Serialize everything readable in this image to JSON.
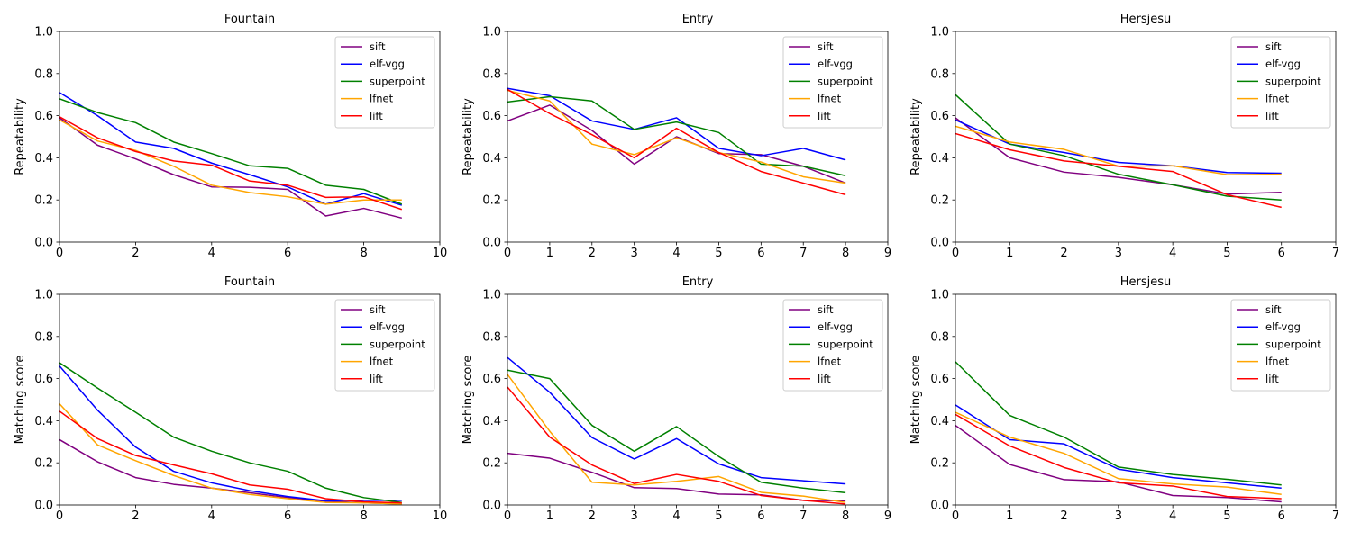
{
  "chart_data": [
    {
      "type": "line",
      "title": "Fountain",
      "ylabel": "Repeatability",
      "xlim": [
        0,
        10
      ],
      "ylim": [
        0,
        1
      ],
      "xticks": [
        0,
        2,
        4,
        6,
        8,
        10
      ],
      "yticks": [
        0.0,
        0.2,
        0.4,
        0.6,
        0.8,
        1.0
      ],
      "legend": "top-right",
      "x": [
        0,
        1,
        2,
        3,
        4,
        5,
        6,
        7,
        8,
        9
      ],
      "series": [
        {
          "name": "sift",
          "color": "#800080",
          "values": [
            0.59,
            0.46,
            0.395,
            0.32,
            0.262,
            0.26,
            0.25,
            0.124,
            0.16,
            0.114
          ]
        },
        {
          "name": "elf-vgg",
          "color": "#0000ff",
          "values": [
            0.71,
            0.6,
            0.475,
            0.445,
            0.375,
            0.32,
            0.262,
            0.18,
            0.23,
            0.175
          ]
        },
        {
          "name": "superpoint",
          "color": "#008000",
          "values": [
            0.68,
            0.615,
            0.567,
            0.475,
            0.42,
            0.362,
            0.35,
            0.27,
            0.25,
            0.18
          ]
        },
        {
          "name": "lfnet",
          "color": "#ffa500",
          "values": [
            0.58,
            0.48,
            0.435,
            0.36,
            0.27,
            0.235,
            0.215,
            0.18,
            0.2,
            0.2
          ]
        },
        {
          "name": "lift",
          "color": "#ff0000",
          "values": [
            0.595,
            0.495,
            0.43,
            0.385,
            0.365,
            0.29,
            0.27,
            0.212,
            0.215,
            0.155
          ]
        }
      ]
    },
    {
      "type": "line",
      "title": "Entry",
      "ylabel": "Repeatability",
      "xlim": [
        0,
        9
      ],
      "ylim": [
        0,
        1
      ],
      "xticks": [
        0,
        1,
        2,
        3,
        4,
        5,
        6,
        7,
        8,
        9
      ],
      "yticks": [
        0.0,
        0.2,
        0.4,
        0.6,
        0.8,
        1.0
      ],
      "legend": "top-right",
      "x": [
        0,
        1,
        2,
        3,
        4,
        5,
        6,
        7,
        8
      ],
      "series": [
        {
          "name": "sift",
          "color": "#800080",
          "values": [
            0.575,
            0.65,
            0.53,
            0.37,
            0.5,
            0.42,
            0.415,
            0.36,
            0.28
          ]
        },
        {
          "name": "elf-vgg",
          "color": "#0000ff",
          "values": [
            0.73,
            0.695,
            0.575,
            0.535,
            0.59,
            0.445,
            0.41,
            0.445,
            0.39
          ]
        },
        {
          "name": "superpoint",
          "color": "#008000",
          "values": [
            0.665,
            0.69,
            0.67,
            0.535,
            0.57,
            0.52,
            0.37,
            0.36,
            0.315
          ]
        },
        {
          "name": "lfnet",
          "color": "#ffa500",
          "values": [
            0.72,
            0.67,
            0.465,
            0.415,
            0.495,
            0.425,
            0.38,
            0.31,
            0.28
          ]
        },
        {
          "name": "lift",
          "color": "#ff0000",
          "values": [
            0.725,
            0.61,
            0.51,
            0.4,
            0.54,
            0.425,
            0.335,
            0.28,
            0.225
          ]
        }
      ]
    },
    {
      "type": "line",
      "title": "Hersjesu",
      "ylabel": "Repeatability",
      "xlim": [
        0,
        7
      ],
      "ylim": [
        0,
        1
      ],
      "xticks": [
        0,
        1,
        2,
        3,
        4,
        5,
        6,
        7
      ],
      "yticks": [
        0.0,
        0.2,
        0.4,
        0.6,
        0.8,
        1.0
      ],
      "legend": "top-right",
      "x": [
        0,
        1,
        2,
        3,
        4,
        5,
        6
      ],
      "series": [
        {
          "name": "sift",
          "color": "#800080",
          "values": [
            0.59,
            0.4,
            0.332,
            0.307,
            0.272,
            0.228,
            0.236
          ]
        },
        {
          "name": "elf-vgg",
          "color": "#0000ff",
          "values": [
            0.58,
            0.465,
            0.425,
            0.378,
            0.362,
            0.33,
            0.327
          ]
        },
        {
          "name": "superpoint",
          "color": "#008000",
          "values": [
            0.7,
            0.465,
            0.41,
            0.322,
            0.272,
            0.218,
            0.2
          ]
        },
        {
          "name": "lfnet",
          "color": "#ffa500",
          "values": [
            0.55,
            0.475,
            0.44,
            0.36,
            0.362,
            0.32,
            0.322
          ]
        },
        {
          "name": "lift",
          "color": "#ff0000",
          "values": [
            0.515,
            0.438,
            0.385,
            0.36,
            0.335,
            0.225,
            0.165
          ]
        }
      ]
    },
    {
      "type": "line",
      "title": "Fountain",
      "ylabel": "Matching score",
      "xlim": [
        0,
        10
      ],
      "ylim": [
        0,
        1
      ],
      "xticks": [
        0,
        2,
        4,
        6,
        8,
        10
      ],
      "yticks": [
        0.0,
        0.2,
        0.4,
        0.6,
        0.8,
        1.0
      ],
      "legend": "top-right",
      "x": [
        0,
        1,
        2,
        3,
        4,
        5,
        6,
        7,
        8,
        9
      ],
      "series": [
        {
          "name": "sift",
          "color": "#800080",
          "values": [
            0.31,
            0.205,
            0.13,
            0.098,
            0.08,
            0.058,
            0.035,
            0.018,
            0.01,
            0.005
          ]
        },
        {
          "name": "elf-vgg",
          "color": "#0000ff",
          "values": [
            0.66,
            0.45,
            0.275,
            0.16,
            0.105,
            0.068,
            0.04,
            0.02,
            0.022,
            0.022
          ]
        },
        {
          "name": "superpoint",
          "color": "#008000",
          "values": [
            0.675,
            0.555,
            0.44,
            0.322,
            0.255,
            0.2,
            0.16,
            0.08,
            0.035,
            0.012
          ]
        },
        {
          "name": "lfnet",
          "color": "#ffa500",
          "values": [
            0.48,
            0.285,
            0.21,
            0.14,
            0.08,
            0.05,
            0.03,
            0.012,
            0.01,
            0.005
          ]
        },
        {
          "name": "lift",
          "color": "#ff0000",
          "values": [
            0.445,
            0.315,
            0.235,
            0.19,
            0.148,
            0.095,
            0.075,
            0.03,
            0.015,
            0.01
          ]
        }
      ]
    },
    {
      "type": "line",
      "title": "Entry",
      "ylabel": "Matching score",
      "xlim": [
        0,
        9
      ],
      "ylim": [
        0,
        1
      ],
      "xticks": [
        0,
        1,
        2,
        3,
        4,
        5,
        6,
        7,
        8,
        9
      ],
      "yticks": [
        0.0,
        0.2,
        0.4,
        0.6,
        0.8,
        1.0
      ],
      "legend": "top-right",
      "x": [
        0,
        1,
        2,
        3,
        4,
        5,
        6,
        7,
        8
      ],
      "series": [
        {
          "name": "sift",
          "color": "#800080",
          "values": [
            0.245,
            0.222,
            0.155,
            0.082,
            0.078,
            0.052,
            0.048,
            0.022,
            0.02
          ]
        },
        {
          "name": "elf-vgg",
          "color": "#0000ff",
          "values": [
            0.7,
            0.535,
            0.32,
            0.218,
            0.315,
            0.195,
            0.13,
            0.115,
            0.1
          ]
        },
        {
          "name": "superpoint",
          "color": "#008000",
          "values": [
            0.64,
            0.6,
            0.378,
            0.255,
            0.372,
            0.23,
            0.108,
            0.08,
            0.058
          ]
        },
        {
          "name": "lfnet",
          "color": "#ffa500",
          "values": [
            0.62,
            0.35,
            0.108,
            0.095,
            0.112,
            0.135,
            0.06,
            0.042,
            0.012
          ]
        },
        {
          "name": "lift",
          "color": "#ff0000",
          "values": [
            0.56,
            0.322,
            0.19,
            0.102,
            0.145,
            0.112,
            0.045,
            0.022,
            0.005
          ]
        }
      ]
    },
    {
      "type": "line",
      "title": "Hersjesu",
      "ylabel": "Matching score",
      "xlim": [
        0,
        7
      ],
      "ylim": [
        0,
        1
      ],
      "xticks": [
        0,
        1,
        2,
        3,
        4,
        5,
        6,
        7
      ],
      "yticks": [
        0.0,
        0.2,
        0.4,
        0.6,
        0.8,
        1.0
      ],
      "legend": "top-right",
      "x": [
        0,
        1,
        2,
        3,
        4,
        5,
        6
      ],
      "series": [
        {
          "name": "sift",
          "color": "#800080",
          "values": [
            0.378,
            0.192,
            0.12,
            0.11,
            0.045,
            0.035,
            0.015
          ]
        },
        {
          "name": "elf-vgg",
          "color": "#0000ff",
          "values": [
            0.475,
            0.31,
            0.29,
            0.17,
            0.13,
            0.105,
            0.08
          ]
        },
        {
          "name": "superpoint",
          "color": "#008000",
          "values": [
            0.68,
            0.425,
            0.322,
            0.18,
            0.145,
            0.122,
            0.095
          ]
        },
        {
          "name": "lfnet",
          "color": "#ffa500",
          "values": [
            0.44,
            0.322,
            0.245,
            0.125,
            0.1,
            0.085,
            0.05
          ]
        },
        {
          "name": "lift",
          "color": "#ff0000",
          "values": [
            0.43,
            0.28,
            0.178,
            0.105,
            0.09,
            0.04,
            0.03
          ]
        }
      ]
    }
  ]
}
